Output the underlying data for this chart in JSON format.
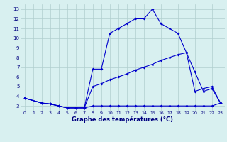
{
  "xlabel": "Graphe des températures (°C)",
  "line_color": "#0000cc",
  "bg_color": "#d8f0f0",
  "grid_color": "#b0cece",
  "ylim": [
    2.5,
    13.5
  ],
  "yticks": [
    3,
    4,
    5,
    6,
    7,
    8,
    9,
    10,
    11,
    12,
    13
  ],
  "xlim": [
    -0.5,
    23.5
  ],
  "curve_main_x": [
    0,
    2,
    3,
    4,
    5,
    6,
    7,
    8,
    9,
    10,
    11,
    12,
    13,
    14,
    15,
    16,
    17,
    18,
    19,
    20,
    21,
    22,
    23
  ],
  "curve_main_y": [
    3.8,
    3.3,
    3.2,
    3.0,
    2.8,
    2.8,
    2.8,
    6.8,
    6.8,
    10.5,
    11.0,
    11.5,
    12.0,
    12.0,
    13.0,
    11.5,
    11.0,
    10.5,
    8.5,
    4.5,
    4.8,
    5.0,
    3.3
  ],
  "curve_upper_x": [
    0,
    2,
    3,
    4,
    5,
    6,
    7,
    8,
    9,
    10,
    11,
    12,
    13,
    14,
    15,
    16,
    17,
    18,
    19,
    20,
    21,
    22,
    23
  ],
  "curve_upper_y": [
    3.8,
    3.3,
    3.2,
    3.0,
    2.8,
    2.8,
    2.8,
    5.0,
    5.3,
    5.7,
    6.0,
    6.3,
    6.7,
    7.0,
    7.3,
    7.7,
    8.0,
    8.3,
    8.5,
    6.5,
    4.5,
    4.8,
    3.3
  ],
  "curve_lower_x": [
    0,
    2,
    3,
    4,
    5,
    6,
    7,
    8,
    9,
    10,
    11,
    12,
    13,
    14,
    15,
    16,
    17,
    18,
    19,
    20,
    21,
    22,
    23
  ],
  "curve_lower_y": [
    3.8,
    3.3,
    3.2,
    3.0,
    2.8,
    2.8,
    2.8,
    3.0,
    3.0,
    3.0,
    3.0,
    3.0,
    3.0,
    3.0,
    3.0,
    3.0,
    3.0,
    3.0,
    3.0,
    3.0,
    3.0,
    3.0,
    3.3
  ]
}
